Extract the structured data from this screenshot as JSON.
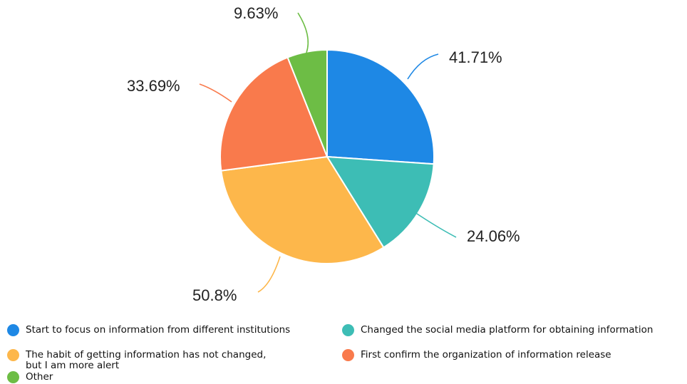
{
  "chart_data": {
    "type": "pie",
    "title": "",
    "slices": [
      {
        "label": "Start to focus on information from different institutions",
        "value": 41.71,
        "value_label": "41.71%",
        "color": "#1E88E5"
      },
      {
        "label": "Changed the social media platform for obtaining information",
        "value": 24.06,
        "value_label": "24.06%",
        "color": "#3DBDB5"
      },
      {
        "label": "The habit of getting information has not changed,\nbut I am more alert",
        "value": 50.8,
        "value_label": "50.8%",
        "color": "#FDB74B"
      },
      {
        "label": "First confirm the organization of information release",
        "value": 33.69,
        "value_label": "33.69%",
        "color": "#F97A4C"
      },
      {
        "label": "Other",
        "value": 9.63,
        "value_label": "9.63%",
        "color": "#6DBD45"
      }
    ],
    "legend_position": "bottom"
  }
}
